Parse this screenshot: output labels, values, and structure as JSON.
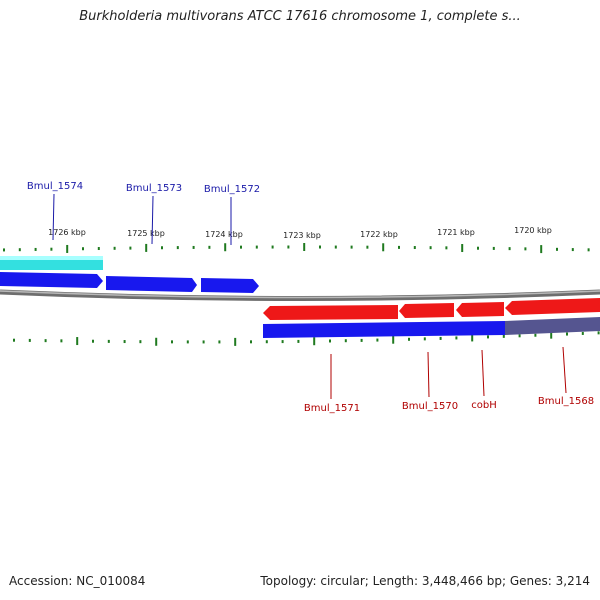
{
  "title": "Burkholderia multivorans ATCC 17616 chromosome 1, complete s...",
  "footer": {
    "accession": "Accession: NC_010084",
    "summary": "Topology: circular; Length: 3,448,466 bp; Genes: 3,214"
  },
  "colors": {
    "tick": "#1f7a1f",
    "forward_label": "#1a1aa8",
    "reverse_label": "#b00000",
    "backbone": "#888888",
    "cds_forward": "#1a1aff",
    "cds_reverse": "#ff1a1a",
    "gene_forward": "#33dddd",
    "gene_reverse_shadow": "#1a1aff",
    "pseudo": "#55558f"
  },
  "map": {
    "kbp_labels": [
      "1726 kbp",
      "1725 kbp",
      "1724 kbp",
      "1723 kbp",
      "1722 kbp",
      "1721 kbp",
      "1720 kbp"
    ],
    "forward_genes": [
      {
        "label": "Bmul_1574"
      },
      {
        "label": "Bmul_1573"
      },
      {
        "label": "Bmul_1572"
      }
    ],
    "reverse_genes": [
      {
        "label": "Bmul_1571"
      },
      {
        "label": "Bmul_1570"
      },
      {
        "label": "cobH"
      },
      {
        "label": "Bmul_1568"
      }
    ]
  }
}
